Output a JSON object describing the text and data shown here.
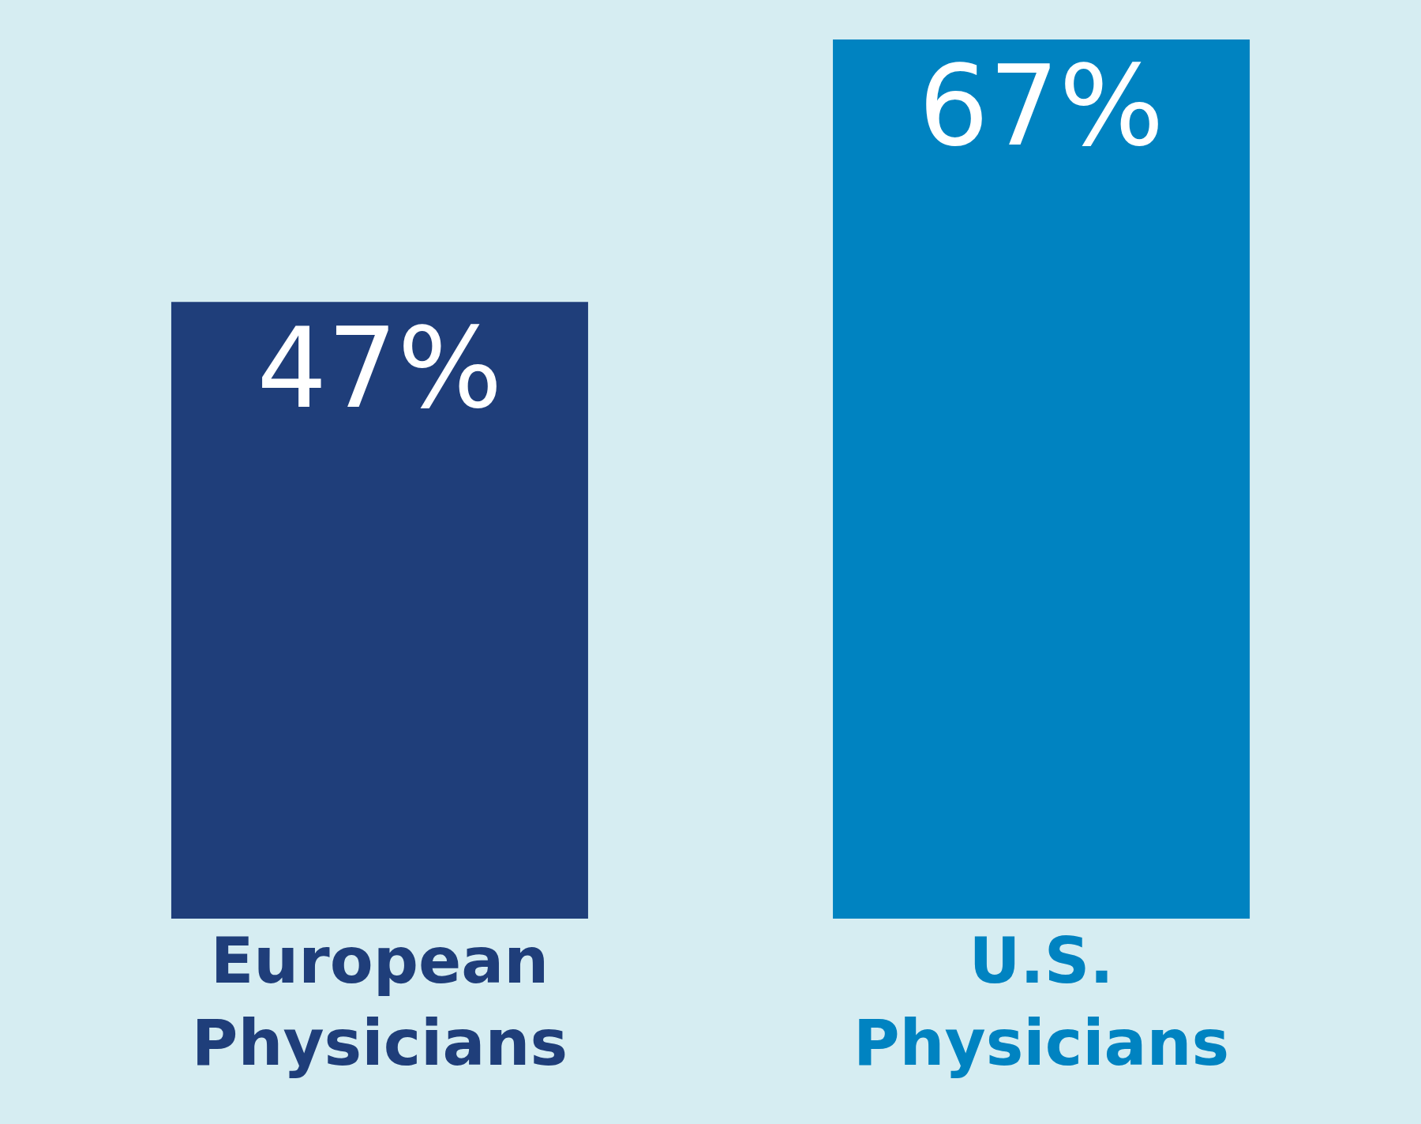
{
  "chart_data": {
    "type": "bar",
    "categories": [
      "European Physicians",
      "U.S. Physicians"
    ],
    "values": [
      47,
      67
    ],
    "colors": [
      "#1f3e7a",
      "#0083c1"
    ],
    "value_labels": [
      "47%",
      "67%"
    ],
    "grid": false,
    "legend": false
  }
}
